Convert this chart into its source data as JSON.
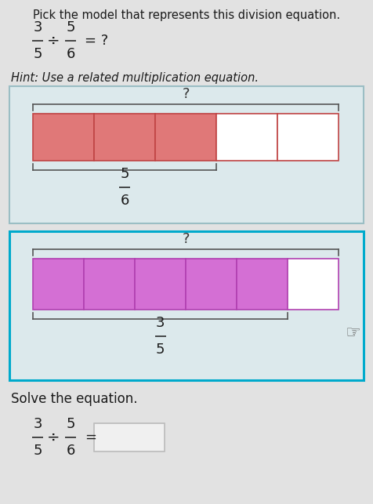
{
  "title": "Pick the model that represents this division equation.",
  "hint": "Hint: Use a related multiplication equation.",
  "solve_text": "Solve the equation.",
  "bg_color": "#e2e2e2",
  "box1": {
    "border_color": "#9bbec4",
    "bg_color": "#dce9ec",
    "total_segments": 5,
    "filled_segments": 3,
    "filled_color": "#e07878",
    "empty_color": "#ffffff",
    "border_seg_color": "#c04444",
    "bracket_num": "5",
    "bracket_den": "6",
    "bracket_covers": 3
  },
  "box2": {
    "border_color": "#00aacc",
    "bg_color": "#dce9ec",
    "total_segments": 6,
    "filled_segments": 5,
    "filled_color": "#d46fd4",
    "empty_color": "#ffffff",
    "border_seg_color": "#b040b0",
    "bracket_num": "3",
    "bracket_den": "5",
    "bracket_covers": 5
  },
  "answer_box_color": "#f0f0f0",
  "answer_box_border": "#bbbbbb"
}
